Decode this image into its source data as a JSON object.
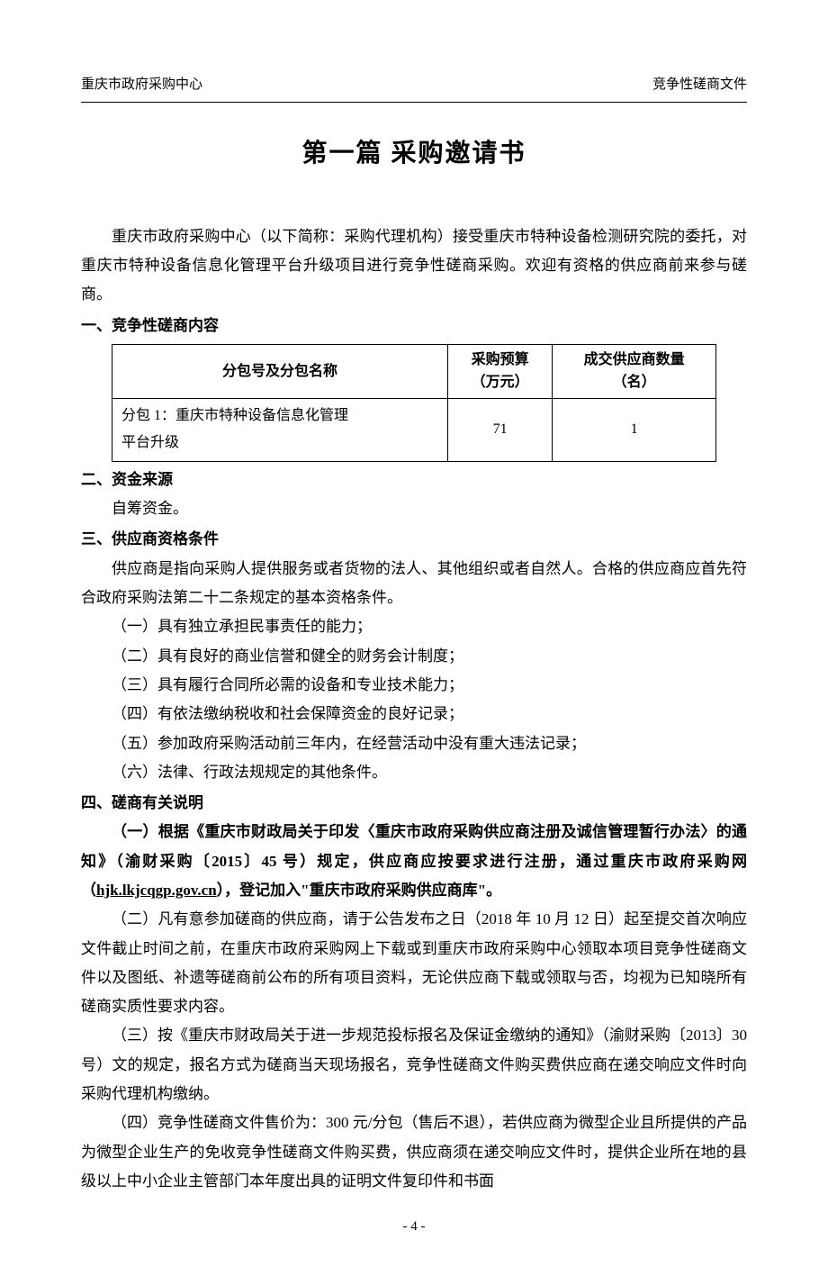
{
  "header": {
    "left": "重庆市政府采购中心",
    "right": "竞争性磋商文件"
  },
  "title": "第一篇  采购邀请书",
  "intro": "重庆市政府采购中心（以下简称：采购代理机构）接受重庆市特种设备检测研究院的委托，对重庆市特种设备信息化管理平台升级项目进行竞争性磋商采购。欢迎有资格的供应商前来参与磋商。",
  "section1": {
    "heading": "一、竞争性磋商内容",
    "table": {
      "headers": {
        "col1": "分包号及分包名称",
        "col2_line1": "采购预算",
        "col2_line2": "（万元）",
        "col3_line1": "成交供应商数量",
        "col3_line2": "（名）"
      },
      "row": {
        "name_line1": "分包 1：重庆市特种设备信息化管理",
        "name_line2": "平台升级",
        "budget": "71",
        "count": "1"
      }
    }
  },
  "section2": {
    "heading": "二、资金来源",
    "content": "自筹资金。"
  },
  "section3": {
    "heading": "三、供应商资格条件",
    "intro": "供应商是指向采购人提供服务或者货物的法人、其他组织或者自然人。合格的供应商应首先符合政府采购法第二十二条规定的基本资格条件。",
    "items": [
      "（一）具有独立承担民事责任的能力；",
      "（二）具有良好的商业信誉和健全的财务会计制度；",
      "（三）具有履行合同所必需的设备和专业技术能力；",
      "（四）有依法缴纳税收和社会保障资金的良好记录；",
      "（五）参加政府采购活动前三年内，在经营活动中没有重大违法记录；",
      "（六）法律、行政法规规定的其他条件。"
    ]
  },
  "section4": {
    "heading": "四、磋商有关说明",
    "item1_prefix": "（一）",
    "item1_bold_part1": "根据《重庆市财政局关于印发〈重庆市政府采购供应商注册及诚信管理暂行办法〉的通知》（渝财采购〔2015〕45 号）规定，供应商应按要求进行注册，通过重庆市政府采购网（",
    "item1_url": "hjk.lkjcqgp.gov.cn",
    "item1_bold_part2": "），登记加入\"重庆市政府采购供应商库\"。",
    "item2": "（二）凡有意参加磋商的供应商，请于公告发布之日（2018 年 10 月 12 日）起至提交首次响应文件截止时间之前，在重庆市政府采购网上下载或到重庆市政府采购中心领取本项目竞争性磋商文件以及图纸、补遗等磋商前公布的所有项目资料，无论供应商下载或领取与否，均视为已知晓所有磋商实质性要求内容。",
    "item3": "（三）按《重庆市财政局关于进一步规范投标报名及保证金缴纳的通知》（渝财采购〔2013〕30 号）文的规定，报名方式为磋商当天现场报名，竞争性磋商文件购买费供应商在递交响应文件时向采购代理机构缴纳。",
    "item4": "（四）竞争性磋商文件售价为：300 元/分包（售后不退），若供应商为微型企业且所提供的产品为微型企业生产的免收竞争性磋商文件购买费，供应商须在递交响应文件时，提供企业所在地的县级以上中小企业主管部门本年度出具的证明文件复印件和书面"
  },
  "page_number": "- 4 -"
}
